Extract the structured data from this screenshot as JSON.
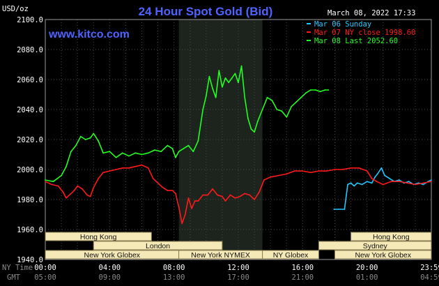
{
  "header": {
    "title": "24 Hour Spot Gold (Bid)",
    "unit": "USD/oz",
    "website": "www.kitco.com",
    "timestamp": "March 08, 2022 17:33"
  },
  "legend": [
    {
      "label": "Mar 06 Sunday",
      "color": "#22c8ff"
    },
    {
      "label": "Mar 07 NY close 1998.60",
      "color": "#ff1a1a"
    },
    {
      "label": "Mar 08 Last 2052.60",
      "color": "#22ff22"
    }
  ],
  "axis_labels": {
    "ny_time": "NY Time",
    "gmt": "GMT"
  },
  "sessions": [
    {
      "label": "Hong Kong",
      "start": -1.5,
      "end": 6.6,
      "row": 0
    },
    {
      "label": "London",
      "start": 3.0,
      "end": 11.0,
      "row": 1
    },
    {
      "label": "New York Globex",
      "start": 0.0,
      "end": 8.3,
      "row": 2
    },
    {
      "label": "New York NYMEX",
      "start": 8.3,
      "end": 13.5,
      "row": 2
    },
    {
      "label": "NY Globex",
      "start": 13.5,
      "end": 17.0,
      "row": 2
    },
    {
      "label": "Hong Kong",
      "start": 19.0,
      "end": 26.0,
      "row": 0
    },
    {
      "label": "Sydney",
      "start": 17.0,
      "end": 26.0,
      "row": 1
    },
    {
      "label": "New York Globex",
      "start": 18.0,
      "end": 26.0,
      "row": 2
    }
  ],
  "chart_data": {
    "type": "line",
    "title": "24 Hour Spot Gold (Bid)",
    "ylabel": "USD/oz",
    "xlim": [
      0,
      24
    ],
    "ylim": [
      1940,
      2100
    ],
    "yticks": [
      1940,
      1960,
      1980,
      2000,
      2020,
      2040,
      2060,
      2080,
      2100
    ],
    "ytick_labels": [
      "1940.0",
      "1960.0",
      "1980.0",
      "2000.0",
      "2020.0",
      "2040.0",
      "2060.0",
      "2080.0",
      "2100.0"
    ],
    "xticks": [
      0,
      4,
      8,
      12,
      16,
      20,
      24
    ],
    "xtick_labels": [
      "00:00",
      "04:00",
      "08:00",
      "12:00",
      "16:00",
      "20:00",
      "23:59"
    ],
    "xtick_gmt_labels": [
      "05:00",
      "09:00",
      "13:00",
      "17:00",
      "21:00",
      "01:00",
      "04:59"
    ],
    "highlight_x": [
      8.3,
      13.5
    ],
    "grid": true,
    "legend_position": "top-right",
    "series": [
      {
        "name": "Mar 06 Sunday",
        "color": "#22c8ff",
        "x": [
          17.95,
          18.6,
          18.8,
          19.0,
          19.2,
          19.4,
          19.7,
          20.0,
          20.3,
          20.5,
          20.65,
          20.9,
          21.1,
          21.4,
          21.7,
          22.0,
          22.3,
          22.6,
          22.9,
          23.2,
          23.5,
          23.8,
          24.0
        ],
        "y": [
          1973.5,
          1973.5,
          1990,
          1991,
          1989,
          1991,
          1990,
          1992,
          1991,
          1995,
          1997,
          2001,
          1996,
          1994,
          1992,
          1993,
          1991,
          1992,
          1990,
          1991,
          1990,
          1992,
          1993
        ]
      },
      {
        "name": "Mar 07 NY close 1998.60",
        "color": "#ff1a1a",
        "x": [
          0.0,
          0.4,
          0.8,
          1.1,
          1.3,
          1.5,
          1.8,
          2.0,
          2.3,
          2.6,
          2.8,
          3.0,
          3.3,
          3.6,
          4.0,
          4.4,
          4.8,
          5.2,
          5.6,
          6.0,
          6.4,
          6.7,
          7.0,
          7.3,
          7.6,
          7.9,
          8.1,
          8.3,
          8.5,
          8.7,
          8.9,
          9.1,
          9.3,
          9.5,
          9.8,
          10.1,
          10.4,
          10.7,
          11.0,
          11.2,
          11.5,
          11.8,
          12.1,
          12.4,
          12.7,
          13.0,
          13.3,
          13.6,
          14.0,
          14.5,
          15.0,
          15.5,
          16.0,
          16.5,
          17.0,
          17.5,
          18.0,
          18.5,
          19.0,
          19.5,
          20.0,
          20.3,
          20.6,
          21.0,
          21.5,
          22.0,
          22.5,
          23.0,
          23.5,
          24.0
        ],
        "y": [
          1992,
          1990,
          1989,
          1985,
          1981,
          1983,
          1986,
          1989,
          1987,
          1983,
          1982,
          1988,
          1994,
          1998,
          1999,
          2000,
          2001,
          2001,
          2002,
          2003,
          2001,
          1994,
          1991,
          1988,
          1986,
          1986,
          1984,
          1975,
          1964,
          1970,
          1981,
          1974,
          1979,
          1979,
          1983,
          1983,
          1987,
          1983,
          1982,
          1979,
          1983,
          1981,
          1982,
          1984,
          1983,
          1980,
          1985,
          1993,
          1995,
          1996,
          1997,
          1999,
          1999,
          1998,
          1999,
          1999,
          2000,
          2000,
          2001,
          2001,
          1999,
          1994,
          1992,
          1990,
          1992,
          1992,
          1991,
          1990,
          1991,
          1992
        ]
      },
      {
        "name": "Mar 08 Last 2052.60",
        "color": "#22ff22",
        "x": [
          0.0,
          0.5,
          1.0,
          1.3,
          1.6,
          1.9,
          2.2,
          2.5,
          2.8,
          3.0,
          3.3,
          3.6,
          4.0,
          4.4,
          4.8,
          5.2,
          5.6,
          6.0,
          6.4,
          6.8,
          7.2,
          7.6,
          7.9,
          8.1,
          8.3,
          8.6,
          8.9,
          9.2,
          9.5,
          9.8,
          10.0,
          10.2,
          10.4,
          10.6,
          10.8,
          11.0,
          11.2,
          11.4,
          11.6,
          11.8,
          12.0,
          12.2,
          12.4,
          12.6,
          12.8,
          13.0,
          13.2,
          13.5,
          13.8,
          14.1,
          14.4,
          14.7,
          15.0,
          15.3,
          15.6,
          15.9,
          16.2,
          16.5,
          16.8,
          17.1,
          17.4,
          17.6
        ],
        "y": [
          1993,
          1992,
          1996,
          2002,
          2012,
          2016,
          2022,
          2020,
          2021,
          2024,
          2019,
          2011,
          2012,
          2008,
          2011,
          2009,
          2011,
          2010,
          2011,
          2013,
          2012,
          2016,
          2014,
          2008,
          2012,
          2014,
          2016,
          2012,
          2019,
          2040,
          2049,
          2062,
          2054,
          2048,
          2066,
          2055,
          2061,
          2058,
          2061,
          2064,
          2058,
          2069,
          2048,
          2034,
          2027,
          2025,
          2032,
          2040,
          2048,
          2046,
          2040,
          2039,
          2035,
          2042,
          2045,
          2048,
          2051,
          2053,
          2053,
          2052,
          2053,
          2053
        ]
      }
    ]
  }
}
